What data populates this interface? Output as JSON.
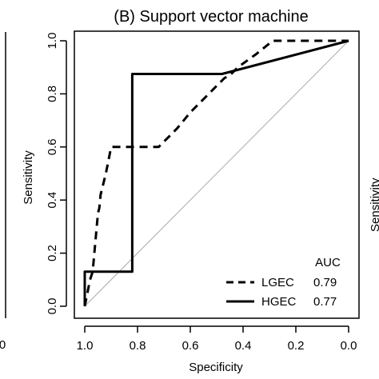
{
  "chart_data": {
    "type": "line",
    "title": "(B)  Support vector machine",
    "xlabel": "Specificity",
    "ylabel": "Sensitivity",
    "xlim": [
      1.0,
      0.0
    ],
    "ylim": [
      0.0,
      1.0
    ],
    "x_ticks": [
      "1.0",
      "0.8",
      "0.6",
      "0.4",
      "0.2",
      "0.0"
    ],
    "y_ticks": [
      "0.0",
      "0.2",
      "0.4",
      "0.6",
      "0.8",
      "1.0"
    ],
    "x_tick_values": [
      1.0,
      0.8,
      0.6,
      0.4,
      0.2,
      0.0
    ],
    "y_tick_values": [
      0.0,
      0.2,
      0.4,
      0.6,
      0.8,
      1.0
    ],
    "reference_line": {
      "x": [
        1.0,
        0.0
      ],
      "y": [
        0.0,
        1.0
      ],
      "color": "#aaaaaa"
    },
    "legend_header": "AUC",
    "legend_position": "bottom-right",
    "grid": false,
    "series": [
      {
        "name": "LGEC",
        "auc": "0.79",
        "style": "dashed",
        "color": "#000000",
        "x": [
          1.0,
          0.99,
          0.98,
          0.97,
          0.95,
          0.945,
          0.94,
          0.92,
          0.9,
          0.72,
          0.7,
          0.65,
          0.6,
          0.5,
          0.47,
          0.45,
          0.42,
          0.35,
          0.3,
          0.29,
          0.0
        ],
        "y": [
          0.0,
          0.05,
          0.1,
          0.13,
          0.35,
          0.37,
          0.42,
          0.5,
          0.6,
          0.6,
          0.62,
          0.67,
          0.73,
          0.83,
          0.86,
          0.87,
          0.9,
          0.95,
          0.99,
          1.0,
          1.0
        ]
      },
      {
        "name": "HGEC",
        "auc": "0.77",
        "style": "solid",
        "color": "#000000",
        "x": [
          1.0,
          1.0,
          0.82,
          0.82,
          0.48,
          0.0
        ],
        "y": [
          0.0,
          0.13,
          0.13,
          0.875,
          0.875,
          1.0
        ]
      }
    ]
  },
  "edge_marks": {
    "left_tick_label": "0",
    "right_label_fragment": "Sensitivity"
  }
}
